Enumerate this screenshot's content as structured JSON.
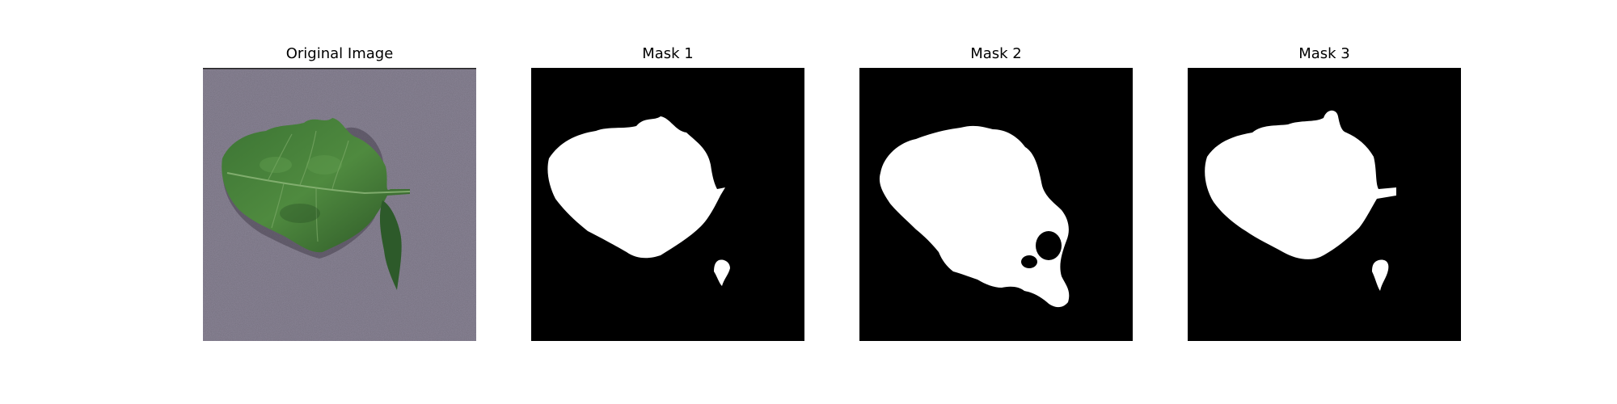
{
  "figure": {
    "panels": [
      {
        "title": "Original Image",
        "kind": "photo",
        "subject": "tomato-leaf-on-gray-surface"
      },
      {
        "title": "Mask 1",
        "kind": "mask"
      },
      {
        "title": "Mask 2",
        "kind": "mask"
      },
      {
        "title": "Mask 3",
        "kind": "mask"
      }
    ],
    "colors": {
      "background": "#ffffff",
      "mask_fg": "#ffffff",
      "mask_bg": "#000000",
      "surface": "#8b8597",
      "leaf_dark": "#2f5a2c",
      "leaf_light": "#5f9a4a"
    }
  }
}
